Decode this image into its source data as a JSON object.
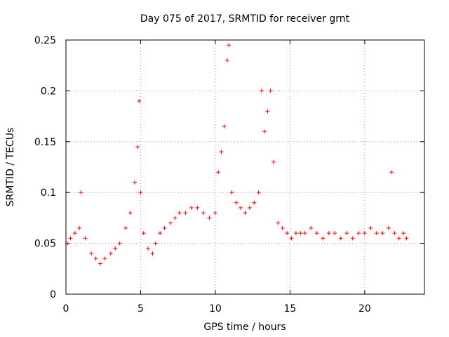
{
  "chart_data": {
    "type": "scatter",
    "title": "Day 075 of 2017, SRMTID for receiver grnt",
    "xlabel": "GPS time / hours",
    "ylabel": "SRMTID / TECUs",
    "xlim": [
      0,
      24
    ],
    "ylim": [
      0,
      0.25
    ],
    "xticks": [
      "0",
      "5",
      "10",
      "15",
      "20"
    ],
    "yticks": [
      "0",
      "0.05",
      "0.1",
      "0.15",
      "0.2",
      "0.25"
    ],
    "grid": true,
    "marker": "plus",
    "color": "#ff0000",
    "series": [
      {
        "x": [
          0.1,
          0.3,
          0.6,
          0.9,
          1.0,
          1.3,
          1.7,
          2.0,
          2.3,
          2.6,
          3.0,
          3.3,
          3.6,
          4.0,
          4.3,
          4.6,
          4.8,
          4.9,
          5.0,
          5.2,
          5.5,
          5.8,
          6.0,
          6.3,
          6.6,
          7.0,
          7.3,
          7.6,
          8.0,
          8.4,
          8.8,
          9.2,
          9.6,
          10.0,
          10.2,
          10.4,
          10.6,
          10.8,
          10.9,
          11.1,
          11.4,
          11.7,
          12.0,
          12.3,
          12.6,
          12.9,
          13.1,
          13.3,
          13.5,
          13.7,
          13.9,
          14.2,
          14.5,
          14.8,
          15.1,
          15.4,
          15.7,
          16.0,
          16.4,
          16.8,
          17.2,
          17.6,
          18.0,
          18.4,
          18.8,
          19.2,
          19.6,
          20.0,
          20.4,
          20.8,
          21.2,
          21.6,
          21.8,
          22.0,
          22.3,
          22.6,
          22.8
        ],
        "y": [
          0.05,
          0.055,
          0.06,
          0.065,
          0.1,
          0.055,
          0.04,
          0.035,
          0.03,
          0.035,
          0.04,
          0.045,
          0.05,
          0.065,
          0.08,
          0.11,
          0.145,
          0.19,
          0.1,
          0.06,
          0.045,
          0.04,
          0.05,
          0.06,
          0.065,
          0.07,
          0.075,
          0.08,
          0.08,
          0.085,
          0.085,
          0.08,
          0.075,
          0.08,
          0.12,
          0.14,
          0.165,
          0.23,
          0.245,
          0.1,
          0.09,
          0.085,
          0.08,
          0.085,
          0.09,
          0.1,
          0.2,
          0.16,
          0.18,
          0.2,
          0.13,
          0.07,
          0.065,
          0.06,
          0.055,
          0.06,
          0.06,
          0.06,
          0.065,
          0.06,
          0.055,
          0.06,
          0.06,
          0.055,
          0.06,
          0.055,
          0.06,
          0.06,
          0.065,
          0.06,
          0.06,
          0.065,
          0.12,
          0.06,
          0.055,
          0.06,
          0.055
        ]
      }
    ]
  }
}
